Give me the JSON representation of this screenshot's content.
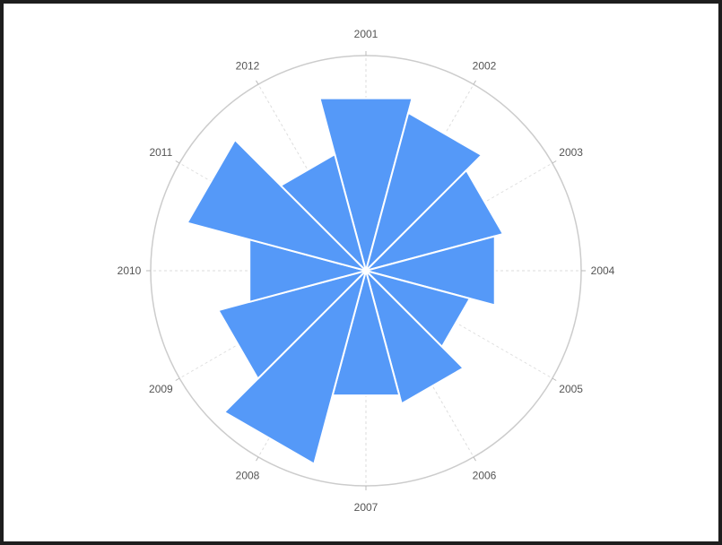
{
  "chart_data": {
    "type": "polar-bar",
    "title": "",
    "categories": [
      "2001",
      "2002",
      "2003",
      "2004",
      "2005",
      "2006",
      "2007",
      "2008",
      "2009",
      "2010",
      "2011",
      "2012"
    ],
    "values": [
      8.3,
      7.6,
      6.6,
      6.2,
      5.0,
      6.4,
      6.0,
      9.3,
      7.1,
      5.6,
      8.6,
      5.6
    ],
    "rmax": 10,
    "series_color": "#5599f8",
    "grid": true,
    "legend": "none"
  }
}
